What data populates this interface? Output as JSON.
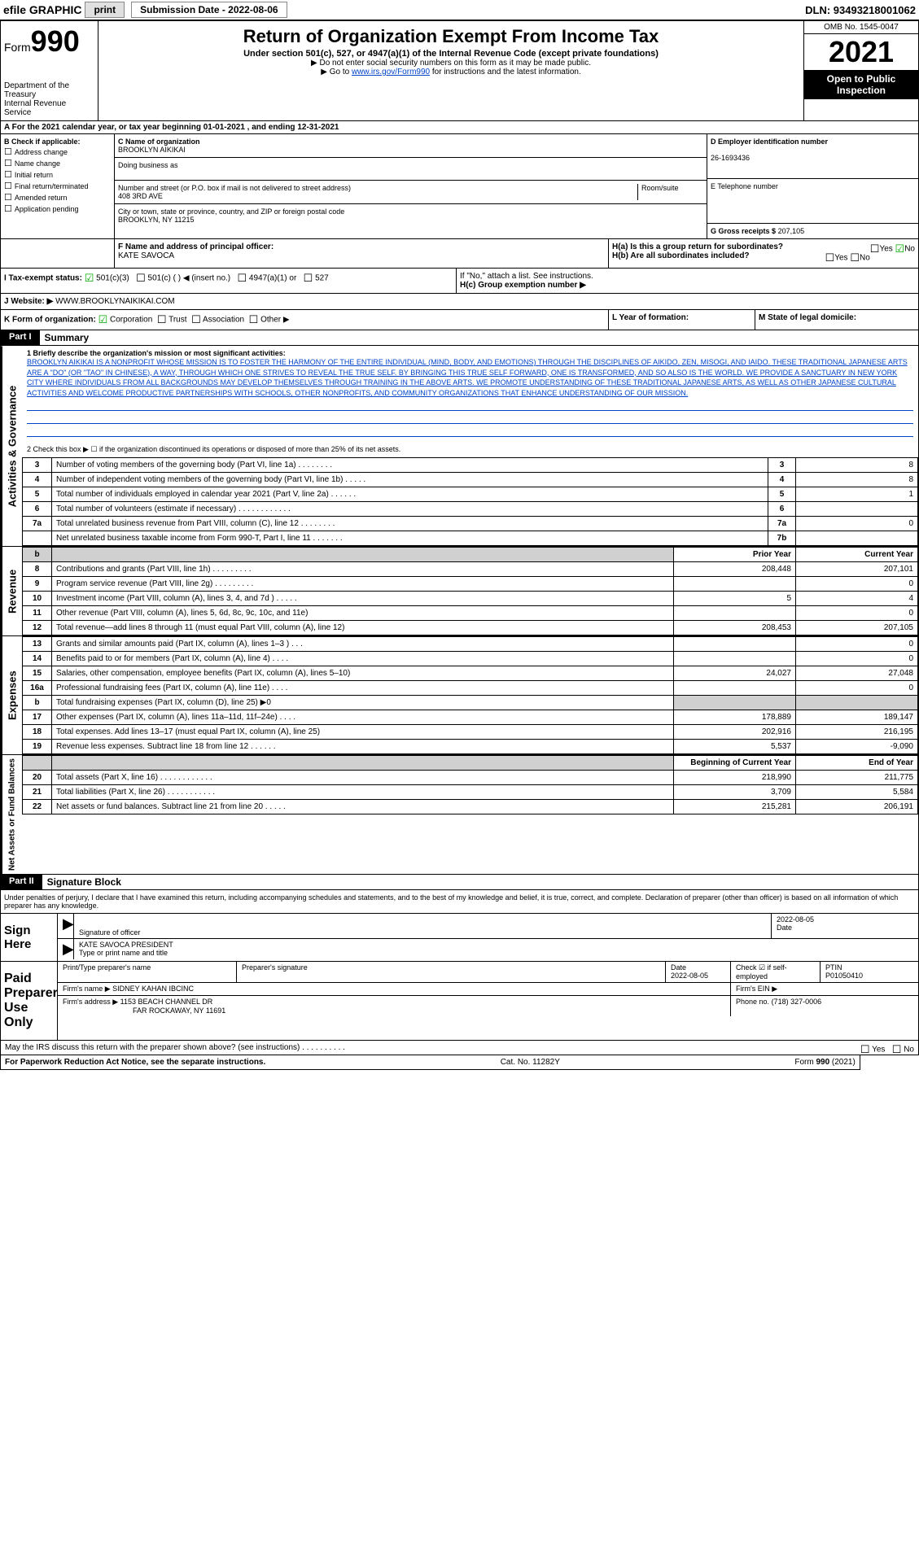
{
  "topbar": {
    "efile_prefix": "efile",
    "efile_label": "GRAPHIC",
    "print_btn": "print",
    "sub_date_label": "Submission Date - 2022-08-06",
    "dln": "DLN: 93493218001062"
  },
  "header": {
    "form_prefix": "Form",
    "form_number": "990",
    "dept1": "Department of the Treasury",
    "dept2": "Internal Revenue Service",
    "title": "Return of Organization Exempt From Income Tax",
    "subtitle": "Under section 501(c), 527, or 4947(a)(1) of the Internal Revenue Code (except private foundations)",
    "note1": "▶ Do not enter social security numbers on this form as it may be made public.",
    "note2_pre": "▶ Go to ",
    "note2_link": "www.irs.gov/Form990",
    "note2_post": " for instructions and the latest information.",
    "omb": "OMB No. 1545-0047",
    "year": "2021",
    "open_public": "Open to Public Inspection"
  },
  "lineA": "A For the 2021 calendar year, or tax year beginning 01-01-2021   , and ending 12-31-2021",
  "boxB": {
    "label": "B Check if applicable:",
    "items": [
      "Address change",
      "Name change",
      "Initial return",
      "Final return/terminated",
      "Amended return",
      "Application pending"
    ]
  },
  "boxC": {
    "name_lbl": "C Name of organization",
    "name": "BROOKLYN AIKIKAI",
    "dba_lbl": "Doing business as",
    "dba": "",
    "addr_lbl": "Number and street (or P.O. box if mail is not delivered to street address)",
    "room_lbl": "Room/suite",
    "addr": "408 3RD AVE",
    "city_lbl": "City or town, state or province, country, and ZIP or foreign postal code",
    "city": "BROOKLYN, NY  11215"
  },
  "boxD": {
    "lbl": "D Employer identification number",
    "val": "26-1693436"
  },
  "boxE": {
    "lbl": "E Telephone number",
    "val": ""
  },
  "boxG": {
    "lbl": "G Gross receipts $",
    "val": "207,105"
  },
  "boxF": {
    "lbl": "F  Name and address of principal officer:",
    "val": "KATE SAVOCA"
  },
  "boxH": {
    "a_lbl": "H(a)  Is this a group return for subordinates?",
    "b_lbl": "H(b)  Are all subordinates included?",
    "b_note": "If \"No,\" attach a list. See instructions.",
    "c_lbl": "H(c)  Group exemption number ▶",
    "yes": "Yes",
    "no": "No"
  },
  "boxI": {
    "lbl": "I   Tax-exempt status:",
    "opts": [
      "501(c)(3)",
      "501(c) (  ) ◀ (insert no.)",
      "4947(a)(1) or",
      "527"
    ]
  },
  "boxJ": {
    "lbl": "J   Website: ▶",
    "val": "WWW.BROOKLYNAIKIKAI.COM"
  },
  "boxK": {
    "lbl": "K Form of organization:",
    "opts": [
      "Corporation",
      "Trust",
      "Association",
      "Other ▶"
    ]
  },
  "boxL": {
    "lbl": "L Year of formation:",
    "val": ""
  },
  "boxM": {
    "lbl": "M State of legal domicile:",
    "val": ""
  },
  "part1": {
    "hdr": "Part I",
    "title": "Summary",
    "vert1": "Activities & Governance",
    "vert2": "Revenue",
    "vert3": "Expenses",
    "vert4": "Net Assets or Fund Balances",
    "line1_lbl": "1  Briefly describe the organization's mission or most significant activities:",
    "mission": "BROOKLYN AIKIKAI IS A NONPROFIT WHOSE MISSION IS TO FOSTER THE HARMONY OF THE ENTIRE INDIVIDUAL (MIND, BODY, AND EMOTIONS) THROUGH THE DISCIPLINES OF AIKIDO, ZEN, MISOGI, AND IAIDO. THESE TRADITIONAL JAPANESE ARTS ARE A \"DO\" (OR \"TAO\" IN CHINESE), A WAY, THROUGH WHICH ONE STRIVES TO REVEAL THE TRUE SELF. BY BRINGING THIS TRUE SELF FORWARD, ONE IS TRANSFORMED, AND SO ALSO IS THE WORLD. WE PROVIDE A SANCTUARY IN NEW YORK CITY WHERE INDIVIDUALS FROM ALL BACKGROUNDS MAY DEVELOP THEMSELVES THROUGH TRAINING IN THE ABOVE ARTS. WE PROMOTE UNDERSTANDING OF THESE TRADITIONAL JAPANESE ARTS, AS WELL AS OTHER JAPANESE CULTURAL ACTIVITIES AND WELCOME PRODUCTIVE PARTNERSHIPS WITH SCHOOLS, OTHER NONPROFITS, AND COMMUNITY ORGANIZATIONS THAT ENHANCE UNDERSTANDING OF OUR MISSION.",
    "line2": "2  Check this box ▶ ☐ if the organization discontinued its operations or disposed of more than 25% of its net assets.",
    "gov_rows": [
      {
        "n": "3",
        "d": "Number of voting members of the governing body (Part VI, line 1a)   .    .    .    .    .    .    .    .",
        "b": "3",
        "v": "8"
      },
      {
        "n": "4",
        "d": "Number of independent voting members of the governing body (Part VI, line 1b)   .    .    .    .    .",
        "b": "4",
        "v": "8"
      },
      {
        "n": "5",
        "d": "Total number of individuals employed in calendar year 2021 (Part V, line 2a)   .    .    .    .    .    .",
        "b": "5",
        "v": "1"
      },
      {
        "n": "6",
        "d": "Total number of volunteers (estimate if necessary)   .    .    .    .    .    .    .    .    .    .    .    .",
        "b": "6",
        "v": ""
      },
      {
        "n": "7a",
        "d": "Total unrelated business revenue from Part VIII, column (C), line 12   .    .    .    .    .    .    .    .",
        "b": "7a",
        "v": "0"
      },
      {
        "n": "",
        "d": "Net unrelated business taxable income from Form 990-T, Part I, line 11   .    .    .    .    .    .    .",
        "b": "7b",
        "v": ""
      }
    ],
    "col_prior": "Prior Year",
    "col_current": "Current Year",
    "rev_rows": [
      {
        "n": "8",
        "d": "Contributions and grants (Part VIII, line 1h)   .    .    .    .    .    .    .    .    .",
        "py": "208,448",
        "cy": "207,101"
      },
      {
        "n": "9",
        "d": "Program service revenue (Part VIII, line 2g)   .    .    .    .    .    .    .    .    .",
        "py": "",
        "cy": "0"
      },
      {
        "n": "10",
        "d": "Investment income (Part VIII, column (A), lines 3, 4, and 7d )   .    .    .    .    .",
        "py": "5",
        "cy": "4"
      },
      {
        "n": "11",
        "d": "Other revenue (Part VIII, column (A), lines 5, 6d, 8c, 9c, 10c, and 11e)",
        "py": "",
        "cy": "0"
      },
      {
        "n": "12",
        "d": "Total revenue—add lines 8 through 11 (must equal Part VIII, column (A), line 12)",
        "py": "208,453",
        "cy": "207,105"
      }
    ],
    "exp_rows": [
      {
        "n": "13",
        "d": "Grants and similar amounts paid (Part IX, column (A), lines 1–3 )   .    .    .",
        "py": "",
        "cy": "0"
      },
      {
        "n": "14",
        "d": "Benefits paid to or for members (Part IX, column (A), line 4)   .    .    .    .",
        "py": "",
        "cy": "0"
      },
      {
        "n": "15",
        "d": "Salaries, other compensation, employee benefits (Part IX, column (A), lines 5–10)",
        "py": "24,027",
        "cy": "27,048"
      },
      {
        "n": "16a",
        "d": "Professional fundraising fees (Part IX, column (A), line 11e)   .    .    .    .",
        "py": "",
        "cy": "0"
      },
      {
        "n": "b",
        "d": "Total fundraising expenses (Part IX, column (D), line 25) ▶0",
        "py": "shade",
        "cy": "shade"
      },
      {
        "n": "17",
        "d": "Other expenses (Part IX, column (A), lines 11a–11d, 11f–24e)   .    .    .    .",
        "py": "178,889",
        "cy": "189,147"
      },
      {
        "n": "18",
        "d": "Total expenses. Add lines 13–17 (must equal Part IX, column (A), line 25)",
        "py": "202,916",
        "cy": "216,195"
      },
      {
        "n": "19",
        "d": "Revenue less expenses. Subtract line 18 from line 12   .    .    .    .    .    .",
        "py": "5,537",
        "cy": "-9,090"
      }
    ],
    "col_begin": "Beginning of Current Year",
    "col_end": "End of Year",
    "net_rows": [
      {
        "n": "20",
        "d": "Total assets (Part X, line 16)   .    .    .    .    .    .    .    .    .    .    .    .",
        "py": "218,990",
        "cy": "211,775"
      },
      {
        "n": "21",
        "d": "Total liabilities (Part X, line 26)   .    .    .    .    .    .    .    .    .    .    .",
        "py": "3,709",
        "cy": "5,584"
      },
      {
        "n": "22",
        "d": "Net assets or fund balances. Subtract line 21 from line 20   .    .    .    .    .",
        "py": "215,281",
        "cy": "206,191"
      }
    ]
  },
  "part2": {
    "hdr": "Part II",
    "title": "Signature Block",
    "intro": "Under penalties of perjury, I declare that I have examined this return, including accompanying schedules and statements, and to the best of my knowledge and belief, it is true, correct, and complete. Declaration of preparer (other than officer) is based on all information of which preparer has any knowledge.",
    "sign_here": "Sign Here",
    "sig_officer_lbl": "Signature of officer",
    "sig_date": "2022-08-05",
    "date_lbl": "Date",
    "officer_name": "KATE SAVOCA  PRESIDENT",
    "officer_name_lbl": "Type or print name and title",
    "paid_prep": "Paid Preparer Use Only",
    "prep_name_lbl": "Print/Type preparer's name",
    "prep_sig_lbl": "Preparer's signature",
    "prep_date_lbl": "Date",
    "prep_date": "2022-08-05",
    "check_self_lbl": "Check ☑ if self-employed",
    "ptin_lbl": "PTIN",
    "ptin": "P01050410",
    "firm_name_lbl": "Firm's name    ▶",
    "firm_name": "SIDNEY KAHAN IBCINC",
    "firm_ein_lbl": "Firm's EIN ▶",
    "firm_addr_lbl": "Firm's address ▶",
    "firm_addr1": "1153 BEACH CHANNEL DR",
    "firm_addr2": "FAR ROCKAWAY, NY  11691",
    "phone_lbl": "Phone no.",
    "phone": "(718) 327-0006",
    "discuss": "May the IRS discuss this return with the preparer shown above? (see instructions)   .    .    .    .    .    .    .    .    .    .",
    "yes": "Yes",
    "no": "No"
  },
  "footer": {
    "left": "For Paperwork Reduction Act Notice, see the separate instructions.",
    "mid": "Cat. No. 11282Y",
    "right": "Form 990 (2021)"
  }
}
